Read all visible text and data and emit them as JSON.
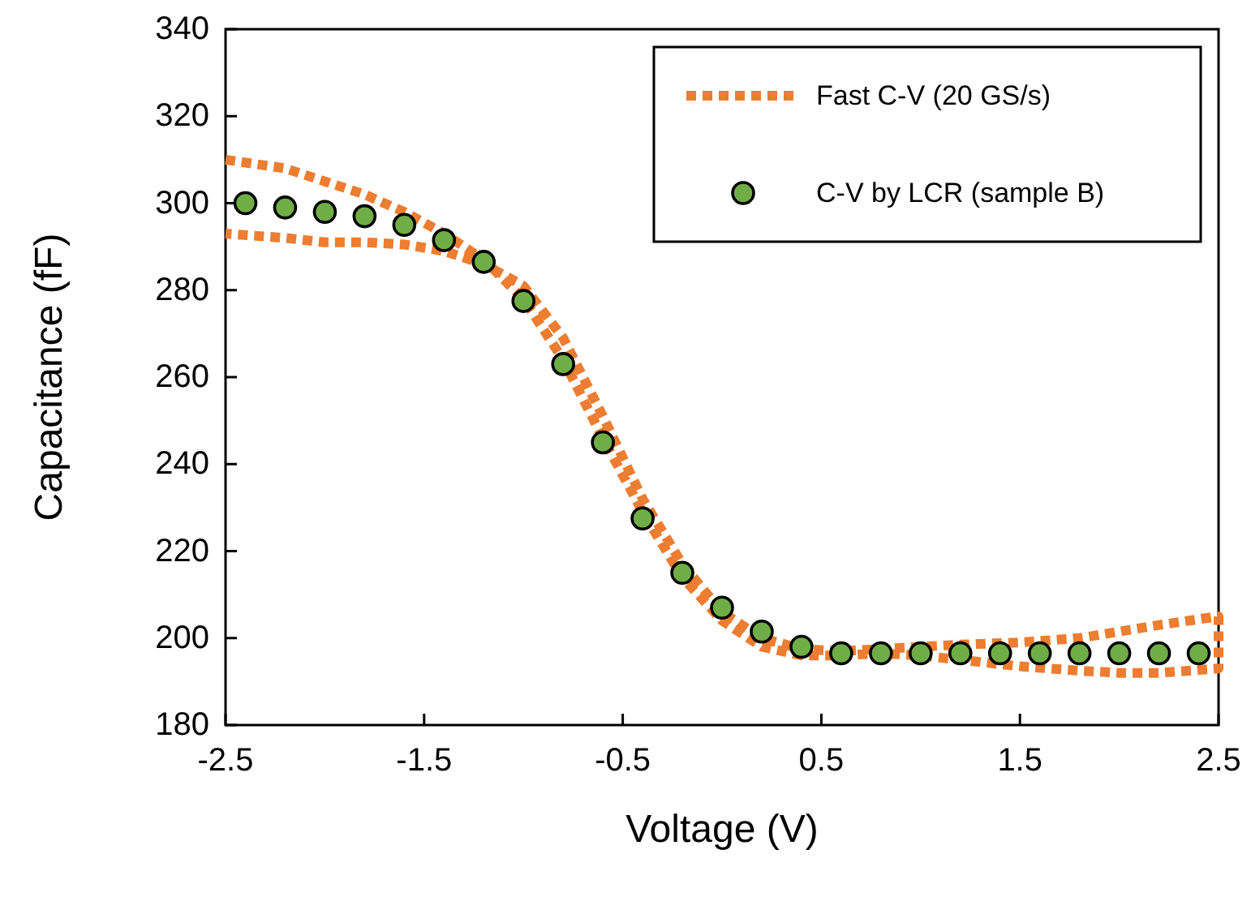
{
  "chart_data": {
    "type": "scatter",
    "xlabel": "Voltage (V)",
    "ylabel": "Capacitance (fF)",
    "xlim": [
      -2.5,
      2.5
    ],
    "xticks": [
      -2.5,
      -1.5,
      -0.5,
      0.5,
      1.5,
      2.5
    ],
    "ylim": [
      180,
      340
    ],
    "yticks": [
      180,
      200,
      220,
      240,
      260,
      280,
      300,
      320,
      340
    ],
    "grid": false,
    "legend": "top right",
    "series": [
      {
        "name": "Fast C-V (20 GS/s)",
        "type": "line",
        "line_style": "dotted",
        "marker": "none",
        "color": "#ed7d31",
        "x": [
          -2.5,
          -2.2,
          -2.0,
          -1.8,
          -1.6,
          -1.4,
          -1.2,
          -1.0,
          -0.8,
          -0.6,
          -0.4,
          -0.2,
          0,
          0.2,
          0.4,
          0.6,
          0.8,
          1.0,
          1.2,
          1.5,
          1.8,
          2.0,
          2.2,
          2.5,
          2.5,
          2.2,
          2.0,
          1.8,
          1.5,
          1.2,
          1.0,
          0.8,
          0.6,
          0.4,
          0.2,
          0,
          -0.2,
          -0.4,
          -0.6,
          -0.8,
          -1.0,
          -1.2,
          -1.4,
          -1.6,
          -1.8,
          -2.0,
          -2.2,
          -2.5
        ],
        "values": [
          310,
          308,
          305,
          302,
          298,
          293,
          287,
          278,
          264,
          246,
          229,
          214,
          204,
          198,
          196,
          196,
          196.5,
          196,
          195,
          193.5,
          192.5,
          192,
          192,
          193,
          205,
          203,
          201.5,
          200,
          199,
          198.5,
          198,
          197.5,
          197,
          197.5,
          200,
          206,
          217,
          232,
          251,
          269,
          281,
          286,
          289,
          290.5,
          291,
          291,
          292,
          293
        ]
      },
      {
        "name": "C-V by LCR (sample B)",
        "marker": "circle",
        "color": "#70ad47",
        "x": [
          -2.4,
          -2.2,
          -2.0,
          -1.8,
          -1.6,
          -1.4,
          -1.2,
          -1.0,
          -0.8,
          -0.6,
          -0.4,
          -0.2,
          0,
          0.2,
          0.4,
          0.6,
          0.8,
          1.0,
          1.2,
          1.4,
          1.6,
          1.8,
          2.0,
          2.2,
          2.4
        ],
        "values": [
          300,
          299,
          298,
          297,
          295,
          291.5,
          286.5,
          277.5,
          263,
          245,
          227.5,
          215,
          207,
          201.5,
          198,
          196.5,
          196.5,
          196.5,
          196.5,
          196.5,
          196.5,
          196.5,
          196.5,
          196.5,
          196.5
        ]
      }
    ]
  }
}
